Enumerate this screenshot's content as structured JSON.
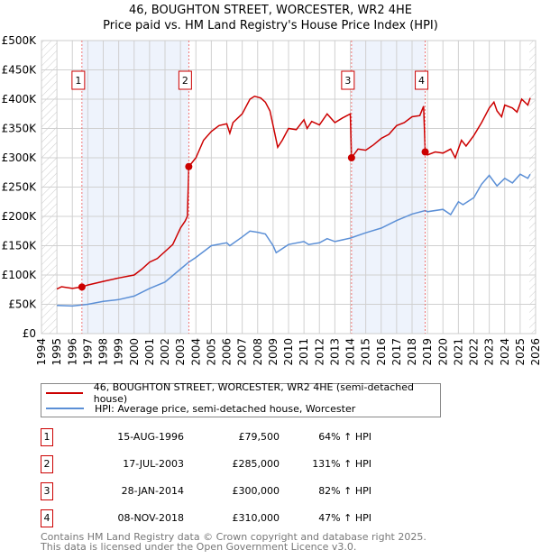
{
  "chart_data": {
    "type": "line",
    "title": "46, BOUGHTON STREET, WORCESTER, WR2 4HE",
    "subtitle": "Price paid vs. HM Land Registry's House Price Index (HPI)",
    "xlim": [
      1994,
      2026
    ],
    "ylim": [
      0,
      500000
    ],
    "x_ticks": [
      "1994",
      "1995",
      "1996",
      "1997",
      "1998",
      "1999",
      "2000",
      "2001",
      "2002",
      "2003",
      "2004",
      "2005",
      "2006",
      "2007",
      "2008",
      "2009",
      "2010",
      "2011",
      "2012",
      "2013",
      "2014",
      "2015",
      "2016",
      "2017",
      "2018",
      "2019",
      "2020",
      "2021",
      "2022",
      "2023",
      "2024",
      "2025",
      "2026"
    ],
    "y_ticks": [
      {
        "value": 0,
        "label": "£0"
      },
      {
        "value": 50000,
        "label": "£50K"
      },
      {
        "value": 100000,
        "label": "£100K"
      },
      {
        "value": 150000,
        "label": "£150K"
      },
      {
        "value": 200000,
        "label": "£200K"
      },
      {
        "value": 250000,
        "label": "£250K"
      },
      {
        "value": 300000,
        "label": "£300K"
      },
      {
        "value": 350000,
        "label": "£350K"
      },
      {
        "value": 400000,
        "label": "£400K"
      },
      {
        "value": 450000,
        "label": "£450K"
      },
      {
        "value": 500000,
        "label": "£500K"
      }
    ],
    "grid": true,
    "shaded_periods": [
      [
        1996.62,
        2003.54
      ],
      [
        2014.08,
        2018.85
      ]
    ],
    "hatched_before": 1995.0,
    "hatched_after": 2025.6,
    "series": [
      {
        "name": "46, BOUGHTON STREET, WORCESTER, WR2 4HE (semi-detached house)",
        "color": "#cc0000",
        "x": [
          1995.0,
          1995.3,
          1996.0,
          1996.62,
          1997,
          1998,
          1999,
          2000,
          2000.5,
          2001,
          2001.5,
          2002,
          2002.5,
          2003,
          2003.3,
          2003.45,
          2003.54,
          2004,
          2004.5,
          2005,
          2005.5,
          2006,
          2006.2,
          2006.4,
          2007,
          2007.5,
          2007.8,
          2008.2,
          2008.5,
          2008.8,
          2009.0,
          2009.3,
          2009.6,
          2010,
          2010.5,
          2011,
          2011.2,
          2011.5,
          2012,
          2012.5,
          2013,
          2013.5,
          2014.0,
          2014.08,
          2014.5,
          2015,
          2015.5,
          2016,
          2016.5,
          2017,
          2017.5,
          2018,
          2018.5,
          2018.75,
          2018.85,
          2019,
          2019.5,
          2020,
          2020.5,
          2020.8,
          2021.2,
          2021.5,
          2022,
          2022.5,
          2023,
          2023.3,
          2023.5,
          2023.8,
          2024,
          2024.5,
          2024.8,
          2025.1,
          2025.5,
          2025.65
        ],
        "y": [
          76000,
          80000,
          77000,
          79500,
          83000,
          89000,
          95000,
          100000,
          110000,
          122000,
          128000,
          140000,
          152000,
          180000,
          192000,
          200000,
          285000,
          300000,
          330000,
          345000,
          355000,
          358000,
          342000,
          360000,
          375000,
          400000,
          405000,
          402000,
          395000,
          380000,
          355000,
          318000,
          330000,
          350000,
          348000,
          365000,
          350000,
          362000,
          356000,
          375000,
          360000,
          368000,
          375000,
          300000,
          315000,
          313000,
          322000,
          333000,
          340000,
          355000,
          360000,
          370000,
          372000,
          388000,
          310000,
          305000,
          310000,
          308000,
          315000,
          300000,
          330000,
          320000,
          338000,
          360000,
          385000,
          395000,
          380000,
          370000,
          390000,
          385000,
          378000,
          400000,
          390000,
          402000
        ]
      },
      {
        "name": "HPI: Average price, semi-detached house, Worcester",
        "color": "#5b8fd6",
        "x": [
          1995,
          1996,
          1997,
          1998,
          1999,
          2000,
          2001,
          2002,
          2003,
          2003.54,
          2004,
          2005,
          2006,
          2006.2,
          2007,
          2007.5,
          2008,
          2008.5,
          2009,
          2009.2,
          2010,
          2011,
          2011.3,
          2012,
          2012.5,
          2013,
          2014,
          2015,
          2016,
          2017,
          2018,
          2018.85,
          2019,
          2020,
          2020.5,
          2021,
          2021.3,
          2022,
          2022.5,
          2023,
          2023.5,
          2024,
          2024.5,
          2025,
          2025.5,
          2025.65
        ],
        "y": [
          48000,
          47000,
          50000,
          55000,
          58000,
          64000,
          77000,
          88000,
          110000,
          122000,
          130000,
          150000,
          155000,
          150000,
          165000,
          175000,
          173000,
          170000,
          150000,
          138000,
          152000,
          157000,
          152000,
          155000,
          162000,
          157000,
          163000,
          172000,
          180000,
          193000,
          204000,
          210000,
          208000,
          212000,
          203000,
          225000,
          220000,
          232000,
          255000,
          270000,
          252000,
          265000,
          257000,
          272000,
          265000,
          272000
        ]
      }
    ],
    "sales": [
      {
        "label": "1",
        "x": 1996.62,
        "value": 79500
      },
      {
        "label": "2",
        "x": 2003.54,
        "value": 285000
      },
      {
        "label": "3",
        "x": 2014.08,
        "value": 300000
      },
      {
        "label": "4",
        "x": 2018.85,
        "value": 310000
      }
    ],
    "legend_position": "below"
  },
  "header": {
    "title": "46, BOUGHTON STREET, WORCESTER, WR2 4HE",
    "subtitle": "Price paid vs. HM Land Registry's House Price Index (HPI)"
  },
  "legend": {
    "property": "46, BOUGHTON STREET, WORCESTER, WR2 4HE (semi-detached house)",
    "hpi": "HPI: Average price, semi-detached house, Worcester"
  },
  "transactions": [
    {
      "num": "1",
      "date": "15-AUG-1996",
      "price": "£79,500",
      "hpi": "64% ↑ HPI"
    },
    {
      "num": "2",
      "date": "17-JUL-2003",
      "price": "£285,000",
      "hpi": "131% ↑ HPI"
    },
    {
      "num": "3",
      "date": "28-JAN-2014",
      "price": "£300,000",
      "hpi": "82% ↑ HPI"
    },
    {
      "num": "4",
      "date": "08-NOV-2018",
      "price": "£310,000",
      "hpi": "47% ↑ HPI"
    }
  ],
  "footer": {
    "line1": "Contains HM Land Registry data © Crown copyright and database right 2025.",
    "line2": "This data is licensed under the Open Government Licence v3.0."
  }
}
